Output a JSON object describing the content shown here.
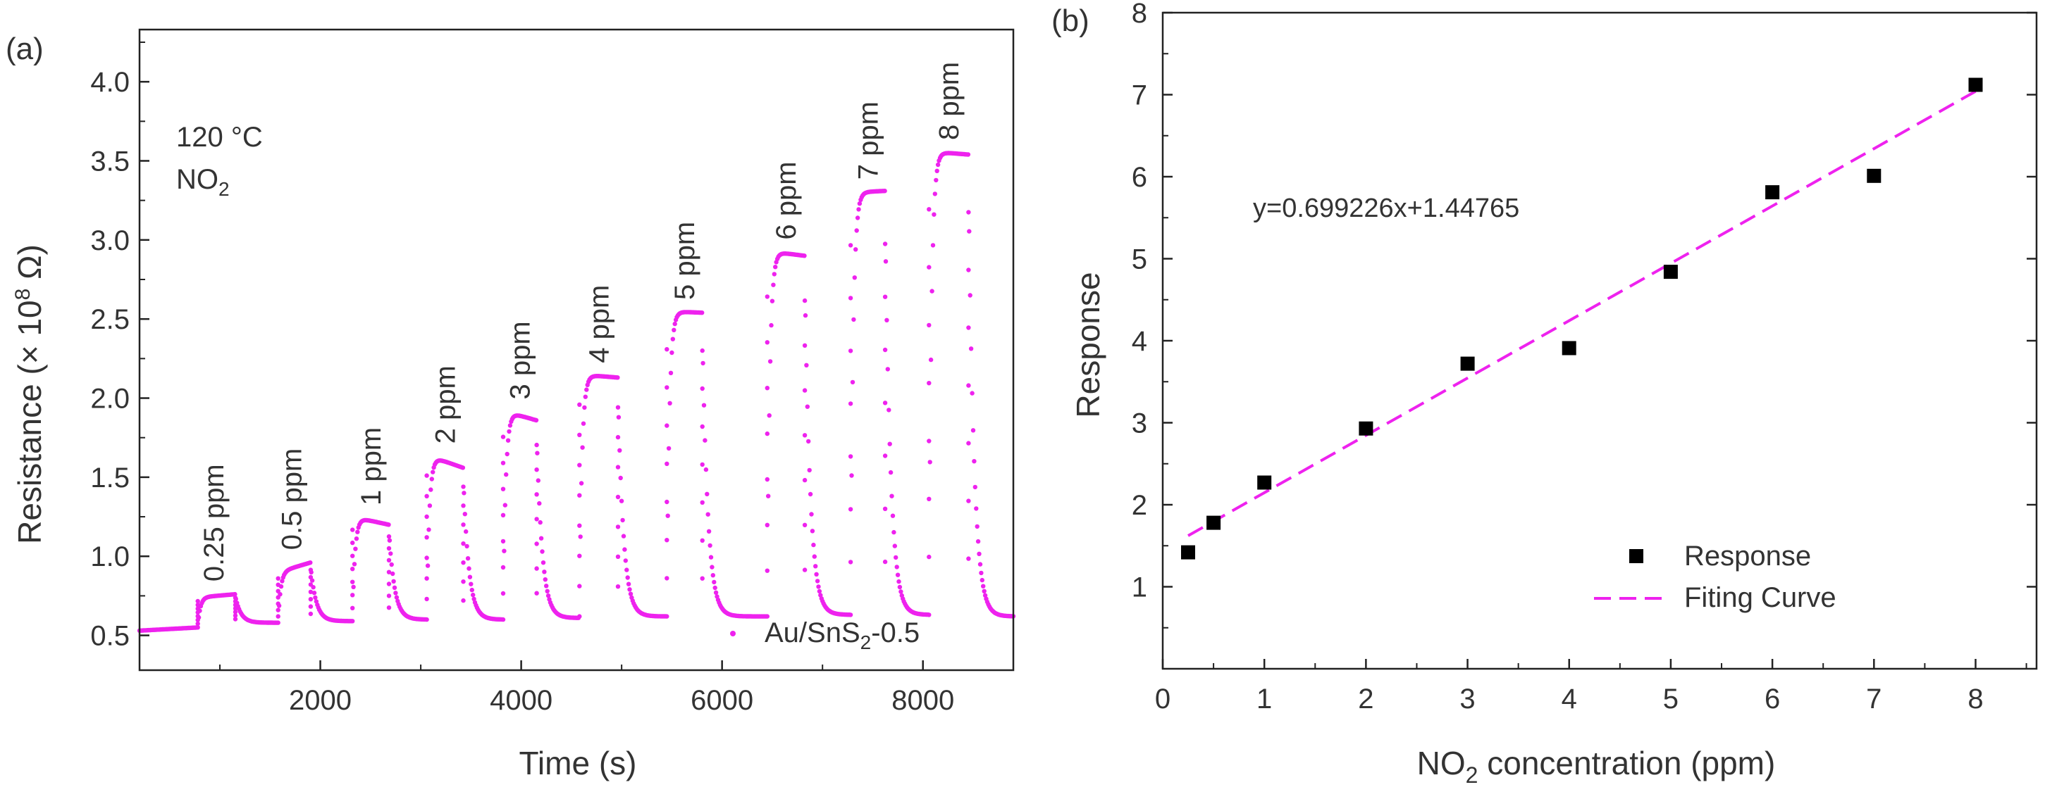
{
  "chart_data": [
    {
      "panel": "(a)",
      "type": "scatter",
      "xlabel": "Time (s)",
      "ylabel": "Resistance (× 10",
      "ylabel_sup": "8",
      "ylabel_end": " Ω)",
      "xlim": [
        200,
        8900
      ],
      "ylim": [
        0.28,
        4.33
      ],
      "xticks": [
        2000,
        4000,
        6000,
        8000
      ],
      "xtick_labels": [
        "2000",
        "4000",
        "6000",
        "8000"
      ],
      "yticks": [
        0.5,
        1.0,
        1.5,
        2.0,
        2.5,
        3.0,
        3.5,
        4.0
      ],
      "ytick_labels": [
        "0.5",
        "1.0",
        "1.5",
        "2.0",
        "2.5",
        "3.0",
        "3.5",
        "4.0"
      ],
      "annotation_temp": "120 °C",
      "annotation_gas_main": "NO",
      "annotation_gas_sub": "2",
      "series_color": "#ee22ee",
      "legend": {
        "prefix": "Au/SnS",
        "sub": "2",
        "suffix": "-0.5",
        "position": "bottom-right"
      },
      "cycles": [
        {
          "label": "0.25 ppm",
          "on": 780,
          "off": 1150,
          "pre": 0.55,
          "peak": 0.74,
          "plateau": 0.76,
          "recovered": 0.58
        },
        {
          "label": "0.5 ppm",
          "on": 1580,
          "off": 1900,
          "pre": 0.58,
          "peak": 0.9,
          "plateau": 0.96,
          "recovered": 0.59
        },
        {
          "label": "1 ppm",
          "on": 2320,
          "off": 2680,
          "pre": 0.59,
          "peak": 1.25,
          "plateau": 1.2,
          "recovered": 0.6
        },
        {
          "label": "2 ppm",
          "on": 3060,
          "off": 3420,
          "pre": 0.6,
          "peak": 1.64,
          "plateau": 1.56,
          "recovered": 0.6
        },
        {
          "label": "3 ppm",
          "on": 3820,
          "off": 4150,
          "pre": 0.6,
          "peak": 1.92,
          "plateau": 1.86,
          "recovered": 0.61
        },
        {
          "label": "4 ppm",
          "on": 4580,
          "off": 4960,
          "pre": 0.62,
          "peak": 2.15,
          "plateau": 2.13,
          "recovered": 0.62
        },
        {
          "label": "5 ppm",
          "on": 5450,
          "off": 5800,
          "pre": 0.62,
          "peak": 2.55,
          "plateau": 2.54,
          "recovered": 0.62
        },
        {
          "label": "6 ppm",
          "on": 6450,
          "off": 6820,
          "pre": 0.62,
          "peak": 2.93,
          "plateau": 2.9,
          "recovered": 0.63
        },
        {
          "label": "7 ppm",
          "on": 7280,
          "off": 7620,
          "pre": 0.63,
          "peak": 3.3,
          "plateau": 3.31,
          "recovered": 0.63
        },
        {
          "label": "8 ppm",
          "on": 8060,
          "off": 8450,
          "pre": 0.63,
          "peak": 3.56,
          "plateau": 3.54,
          "recovered": 0.62
        }
      ]
    },
    {
      "panel": "(b)",
      "type": "scatter",
      "xlabel_main": "NO",
      "xlabel_sub": "2",
      "xlabel_end": " concentration (ppm)",
      "ylabel": "Response",
      "xlim": [
        0,
        8.6
      ],
      "ylim": [
        0,
        8
      ],
      "xticks": [
        0,
        1,
        2,
        3,
        4,
        5,
        6,
        7,
        8
      ],
      "xtick_labels": [
        "0",
        "1",
        "2",
        "3",
        "4",
        "5",
        "6",
        "7",
        "8"
      ],
      "yticks": [
        1,
        2,
        3,
        4,
        5,
        6,
        7,
        8
      ],
      "ytick_labels": [
        "1",
        "2",
        "3",
        "4",
        "5",
        "6",
        "7",
        "8"
      ],
      "x": [
        0.25,
        0.5,
        1,
        2,
        3,
        4,
        5,
        6,
        7,
        8
      ],
      "y": [
        1.42,
        1.78,
        2.27,
        2.93,
        3.72,
        3.91,
        4.84,
        5.81,
        6.01,
        7.12
      ],
      "fit": {
        "slope": 0.699226,
        "intercept": 1.44765,
        "x_range": [
          0.25,
          8
        ]
      },
      "equation": "y=0.699226x+1.44765",
      "marker_color": "#000000",
      "fit_color": "#ee22ee",
      "legend": {
        "items": [
          "Response",
          "Fiting Curve"
        ],
        "position": "bottom-right"
      }
    }
  ]
}
